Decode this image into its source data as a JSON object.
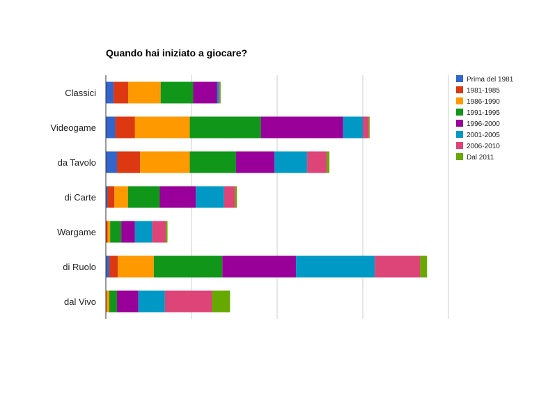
{
  "chart_data": {
    "type": "bar",
    "orientation": "horizontal",
    "stacked": true,
    "title": "Quando hai iniziato a giocare?",
    "xlabel": "",
    "ylabel": "",
    "xlim": [
      0,
      400
    ],
    "grid": true,
    "legend_position": "right",
    "categories": [
      "Classici",
      "Videogame",
      "da Tavolo",
      "di Carte",
      "Wargame",
      "di Ruolo",
      "dal Vivo"
    ],
    "series": [
      {
        "name": "Prima del 1981",
        "color": "#3366cc",
        "values": [
          9,
          11,
          13,
          2,
          0,
          4,
          0
        ]
      },
      {
        "name": "1981-1985",
        "color": "#dc3912",
        "values": [
          17,
          23,
          27,
          8,
          2,
          10,
          1
        ]
      },
      {
        "name": "1986-1990",
        "color": "#ff9900",
        "values": [
          38,
          64,
          58,
          16,
          3,
          42,
          3
        ]
      },
      {
        "name": "1991-1995",
        "color": "#109618",
        "values": [
          38,
          83,
          54,
          37,
          13,
          80,
          9
        ]
      },
      {
        "name": "1996-2000",
        "color": "#990099",
        "values": [
          28,
          96,
          45,
          42,
          16,
          86,
          25
        ]
      },
      {
        "name": "2001-2005",
        "color": "#0099c6",
        "values": [
          2,
          23,
          38,
          33,
          20,
          92,
          31
        ]
      },
      {
        "name": "2006-2010",
        "color": "#dd4477",
        "values": [
          1,
          7,
          23,
          13,
          16,
          53,
          55
        ]
      },
      {
        "name": "Dal 2011",
        "color": "#66aa00",
        "values": [
          1,
          1,
          3,
          2,
          2,
          8,
          21
        ]
      }
    ]
  }
}
